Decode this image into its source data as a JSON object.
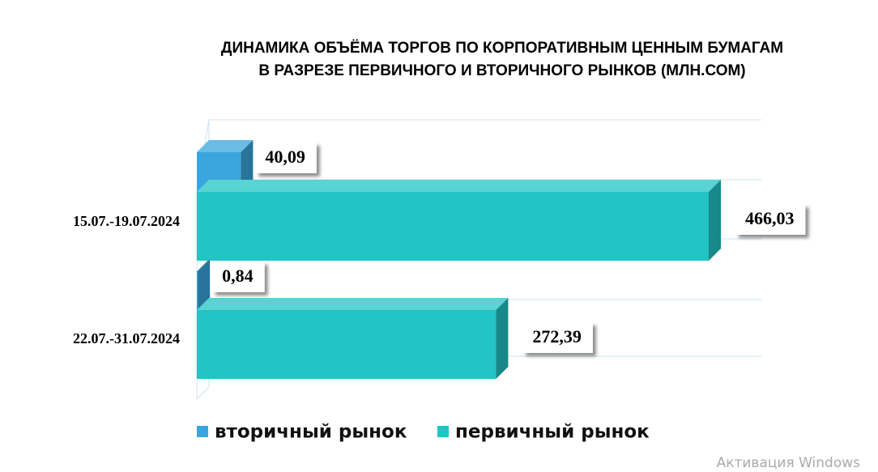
{
  "chart_data": {
    "type": "bar3d",
    "title": [
      "ДИНАМИКА ОБЪЁМА ТОРГОВ ПО КОРПОРАТИВНЫМ ЦЕННЫМ БУМАГАМ",
      "В РАЗРЕЗЕ ПЕРВИЧНОГО И ВТОРИЧНОГО РЫНКОВ  (МЛН.СОМ)"
    ],
    "categories": [
      "15.07.-19.07.2024",
      "22.07.-31.07.2024"
    ],
    "series": [
      {
        "name": "вторичный рынок",
        "color": "#3aa6dd",
        "values": [
          40.09,
          0.84
        ],
        "value_labels": [
          "40,09",
          "0,84"
        ]
      },
      {
        "name": "первичный рынок",
        "color": "#22c4c4",
        "values": [
          466.03,
          272.39
        ],
        "value_labels": [
          "466,03",
          "272,39"
        ]
      }
    ]
  },
  "watermark": "Активация Windows"
}
